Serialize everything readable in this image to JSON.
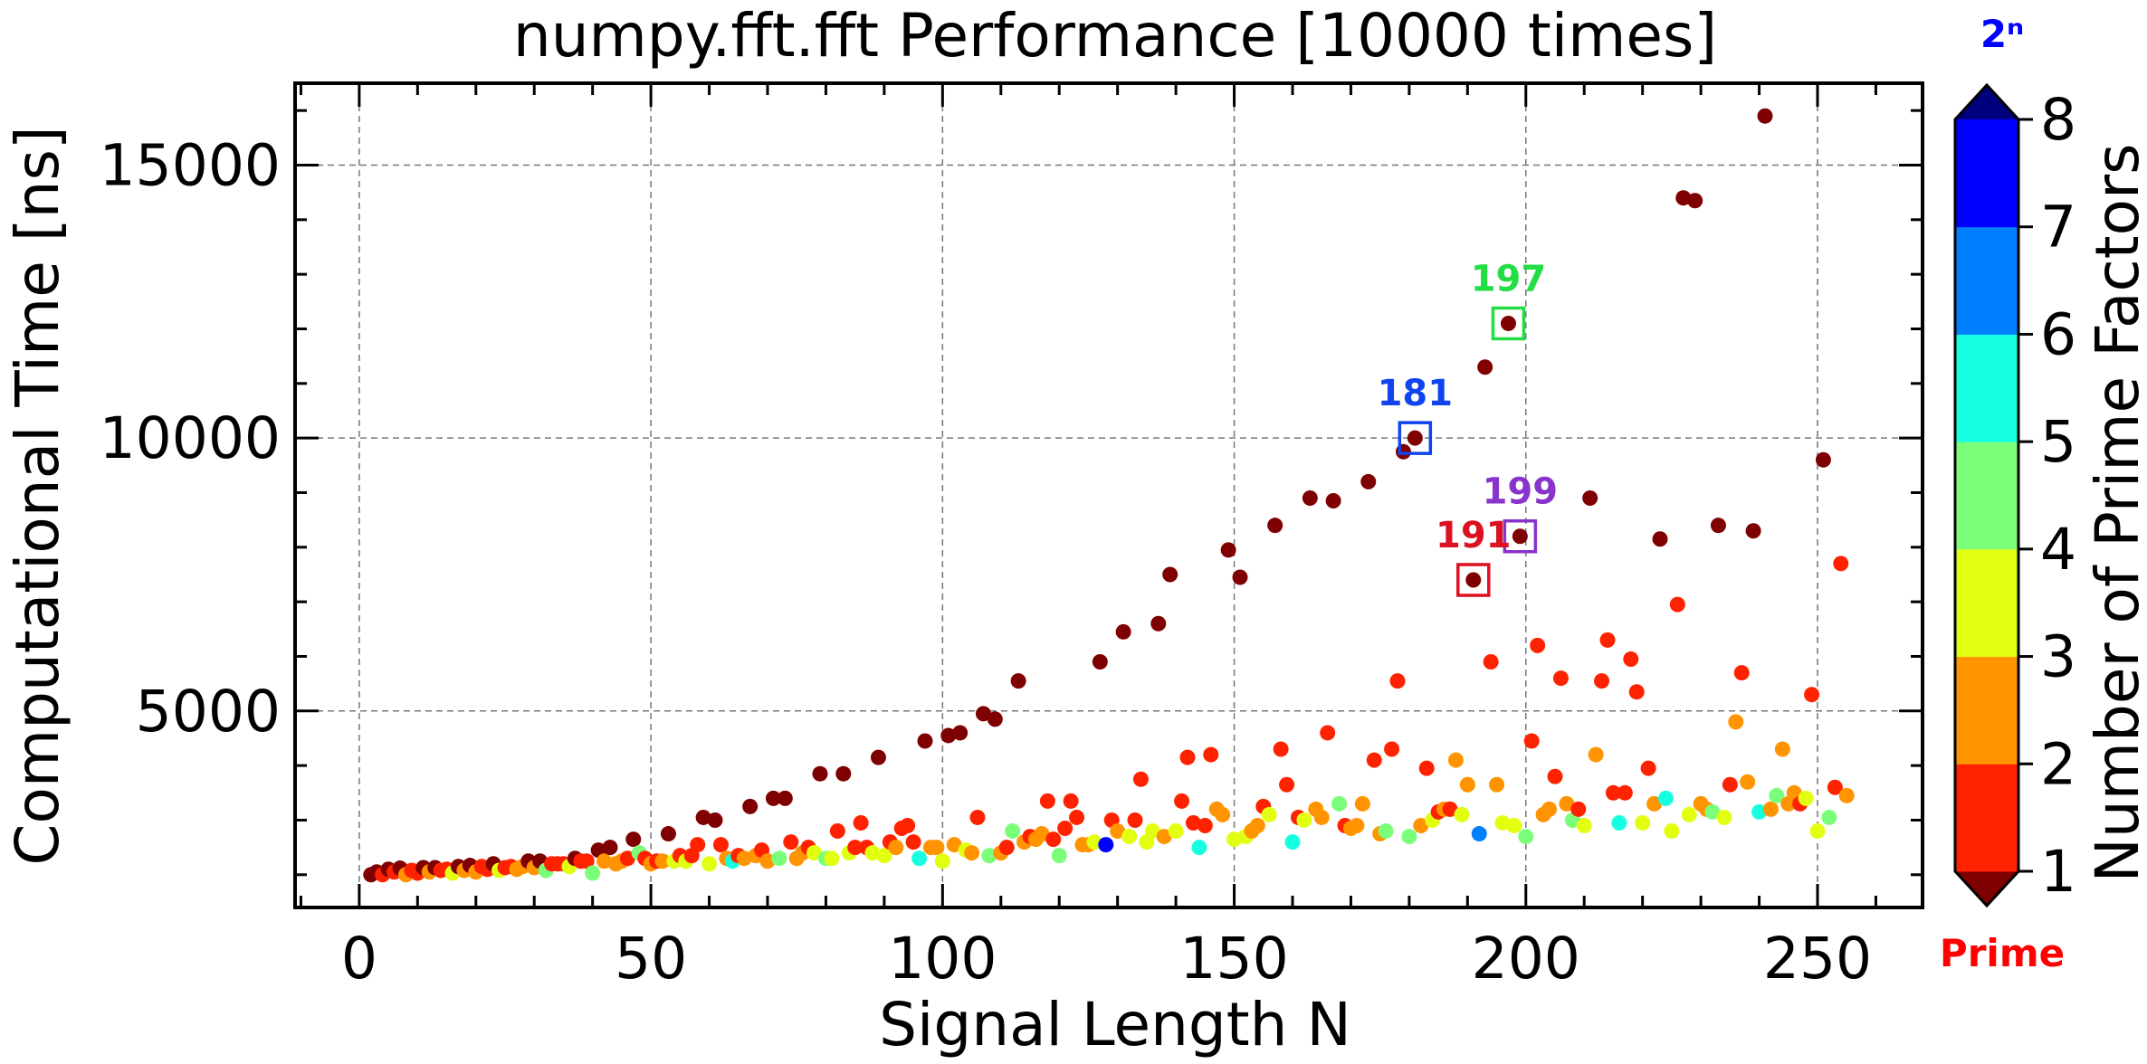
{
  "chart_data": {
    "type": "scatter",
    "title": "numpy.fft.fft Performance [10000 times]",
    "xlabel": "Signal Length N",
    "ylabel": "Computational Time [ns]",
    "xlim": [
      -11,
      268
    ],
    "ylim": [
      1400,
      16500
    ],
    "xticks": [
      0,
      50,
      100,
      150,
      200,
      250
    ],
    "yticks": [
      5000,
      10000,
      15000
    ],
    "grid": true,
    "colors": {
      "1": "#7f0000",
      "2": "#ff2200",
      "3": "#ff9400",
      "4": "#e2ff12",
      "5": "#7bff7b",
      "6": "#16ffe1",
      "7": "#0080ff",
      "8": "#0000ff"
    },
    "colorbar": {
      "label": "Number of Prime Factors",
      "ticks": [
        "1",
        "2",
        "3",
        "4",
        "5",
        "6",
        "7",
        "8"
      ],
      "top_label": "2ⁿ",
      "bottom_label": "Prime",
      "top_color": "#0000ff",
      "bottom_color": "#ff0000",
      "extend_top_color": "#00007f",
      "extend_bottom_color": "#7f0000"
    },
    "annotations": [
      {
        "text": "181",
        "x": 181,
        "y": 10000,
        "color": "#1144ee"
      },
      {
        "text": "197",
        "x": 197,
        "y": 12100,
        "color": "#22dd44"
      },
      {
        "text": "199",
        "x": 199,
        "y": 8200,
        "color": "#8833cc"
      },
      {
        "text": "191",
        "x": 191,
        "y": 7400,
        "color": "#dd1122"
      }
    ],
    "points": [
      [
        2,
        2000,
        1
      ],
      [
        3,
        2050,
        1
      ],
      [
        4,
        2000,
        2
      ],
      [
        5,
        2100,
        1
      ],
      [
        6,
        2050,
        2
      ],
      [
        7,
        2120,
        1
      ],
      [
        8,
        2000,
        3
      ],
      [
        9,
        2080,
        2
      ],
      [
        10,
        2030,
        2
      ],
      [
        11,
        2130,
        1
      ],
      [
        12,
        2050,
        3
      ],
      [
        13,
        2130,
        1
      ],
      [
        14,
        2080,
        2
      ],
      [
        15,
        2100,
        2
      ],
      [
        16,
        2030,
        4
      ],
      [
        17,
        2150,
        1
      ],
      [
        18,
        2080,
        3
      ],
      [
        19,
        2170,
        1
      ],
      [
        20,
        2050,
        3
      ],
      [
        21,
        2150,
        2
      ],
      [
        22,
        2100,
        2
      ],
      [
        23,
        2200,
        1
      ],
      [
        24,
        2080,
        4
      ],
      [
        25,
        2130,
        2
      ],
      [
        26,
        2150,
        2
      ],
      [
        27,
        2100,
        3
      ],
      [
        28,
        2150,
        3
      ],
      [
        29,
        2250,
        1
      ],
      [
        30,
        2130,
        3
      ],
      [
        31,
        2250,
        1
      ],
      [
        32,
        2080,
        5
      ],
      [
        33,
        2200,
        2
      ],
      [
        34,
        2200,
        2
      ],
      [
        35,
        2200,
        2
      ],
      [
        36,
        2150,
        4
      ],
      [
        37,
        2300,
        1
      ],
      [
        38,
        2250,
        2
      ],
      [
        39,
        2250,
        2
      ],
      [
        40,
        2030,
        5
      ],
      [
        41,
        2450,
        1
      ],
      [
        42,
        2250,
        3
      ],
      [
        43,
        2500,
        1
      ],
      [
        44,
        2200,
        3
      ],
      [
        45,
        2250,
        3
      ],
      [
        46,
        2300,
        2
      ],
      [
        47,
        2650,
        1
      ],
      [
        48,
        2400,
        5
      ],
      [
        49,
        2300,
        2
      ],
      [
        50,
        2200,
        3
      ],
      [
        51,
        2250,
        2
      ],
      [
        52,
        2250,
        3
      ],
      [
        53,
        2750,
        1
      ],
      [
        54,
        2250,
        4
      ],
      [
        55,
        2350,
        2
      ],
      [
        56,
        2250,
        4
      ],
      [
        57,
        2350,
        2
      ],
      [
        58,
        2550,
        2
      ],
      [
        59,
        3050,
        1
      ],
      [
        60,
        2200,
        4
      ],
      [
        61,
        3000,
        1
      ],
      [
        62,
        2550,
        2
      ],
      [
        63,
        2300,
        3
      ],
      [
        64,
        2250,
        6
      ],
      [
        65,
        2350,
        2
      ],
      [
        66,
        2300,
        3
      ],
      [
        67,
        3250,
        1
      ],
      [
        68,
        2350,
        3
      ],
      [
        69,
        2450,
        2
      ],
      [
        70,
        2250,
        3
      ],
      [
        71,
        3400,
        1
      ],
      [
        72,
        2300,
        5
      ],
      [
        73,
        3400,
        1
      ],
      [
        74,
        2600,
        2
      ],
      [
        75,
        2300,
        3
      ],
      [
        76,
        2400,
        3
      ],
      [
        77,
        2500,
        2
      ],
      [
        78,
        2400,
        4
      ],
      [
        79,
        3850,
        1
      ],
      [
        80,
        2300,
        5
      ],
      [
        81,
        2300,
        4
      ],
      [
        82,
        2800,
        2
      ],
      [
        83,
        3850,
        1
      ],
      [
        84,
        2400,
        4
      ],
      [
        85,
        2500,
        2
      ],
      [
        86,
        2950,
        2
      ],
      [
        87,
        2500,
        2
      ],
      [
        88,
        2400,
        4
      ],
      [
        89,
        4150,
        1
      ],
      [
        90,
        2350,
        4
      ],
      [
        91,
        2600,
        2
      ],
      [
        92,
        2500,
        3
      ],
      [
        93,
        2850,
        2
      ],
      [
        94,
        2900,
        2
      ],
      [
        95,
        2600,
        2
      ],
      [
        96,
        2300,
        6
      ],
      [
        97,
        4450,
        1
      ],
      [
        98,
        2500,
        3
      ],
      [
        99,
        2500,
        3
      ],
      [
        100,
        2250,
        4
      ],
      [
        101,
        4550,
        1
      ],
      [
        102,
        2550,
        3
      ],
      [
        103,
        4600,
        1
      ],
      [
        104,
        2450,
        4
      ],
      [
        105,
        2400,
        3
      ],
      [
        106,
        3050,
        2
      ],
      [
        107,
        4950,
        1
      ],
      [
        108,
        2350,
        5
      ],
      [
        109,
        4850,
        1
      ],
      [
        110,
        2400,
        3
      ],
      [
        111,
        2500,
        2
      ],
      [
        112,
        2800,
        5
      ],
      [
        113,
        5550,
        1
      ],
      [
        114,
        2600,
        3
      ],
      [
        115,
        2700,
        2
      ],
      [
        116,
        2650,
        3
      ],
      [
        117,
        2750,
        3
      ],
      [
        118,
        3350,
        2
      ],
      [
        119,
        2650,
        2
      ],
      [
        120,
        2350,
        5
      ],
      [
        121,
        2850,
        2
      ],
      [
        122,
        3350,
        2
      ],
      [
        123,
        3050,
        2
      ],
      [
        124,
        2550,
        3
      ],
      [
        125,
        2550,
        3
      ],
      [
        126,
        2600,
        4
      ],
      [
        127,
        5900,
        1
      ],
      [
        128,
        2550,
        8
      ],
      [
        129,
        3000,
        2
      ],
      [
        130,
        2800,
        3
      ],
      [
        131,
        6450,
        1
      ],
      [
        132,
        2700,
        4
      ],
      [
        133,
        3000,
        2
      ],
      [
        134,
        3750,
        2
      ],
      [
        135,
        2600,
        4
      ],
      [
        136,
        2800,
        4
      ],
      [
        137,
        6600,
        1
      ],
      [
        138,
        2700,
        3
      ],
      [
        139,
        7500,
        1
      ],
      [
        140,
        2800,
        4
      ],
      [
        141,
        3350,
        2
      ],
      [
        142,
        4150,
        2
      ],
      [
        143,
        2950,
        2
      ],
      [
        144,
        2500,
        6
      ],
      [
        145,
        2900,
        2
      ],
      [
        146,
        4200,
        2
      ],
      [
        147,
        3200,
        3
      ],
      [
        148,
        3100,
        3
      ],
      [
        149,
        7950,
        1
      ],
      [
        150,
        2650,
        4
      ],
      [
        151,
        7450,
        1
      ],
      [
        152,
        2700,
        4
      ],
      [
        153,
        2800,
        3
      ],
      [
        154,
        2900,
        3
      ],
      [
        155,
        3250,
        2
      ],
      [
        156,
        3100,
        4
      ],
      [
        157,
        8400,
        1
      ],
      [
        158,
        4300,
        2
      ],
      [
        159,
        3650,
        2
      ],
      [
        160,
        2600,
        6
      ],
      [
        161,
        3050,
        2
      ],
      [
        162,
        3000,
        4
      ],
      [
        163,
        8900,
        1
      ],
      [
        164,
        3200,
        3
      ],
      [
        165,
        3050,
        3
      ],
      [
        166,
        4600,
        2
      ],
      [
        167,
        8850,
        1
      ],
      [
        168,
        3300,
        5
      ],
      [
        169,
        2900,
        2
      ],
      [
        170,
        2850,
        3
      ],
      [
        171,
        2900,
        3
      ],
      [
        172,
        3300,
        3
      ],
      [
        173,
        9200,
        1
      ],
      [
        174,
        4100,
        2
      ],
      [
        175,
        2750,
        3
      ],
      [
        176,
        2800,
        5
      ],
      [
        177,
        4300,
        2
      ],
      [
        178,
        5550,
        2
      ],
      [
        179,
        9750,
        1
      ],
      [
        180,
        2700,
        5
      ],
      [
        181,
        10000,
        1
      ],
      [
        182,
        2900,
        3
      ],
      [
        183,
        3950,
        2
      ],
      [
        184,
        3000,
        4
      ],
      [
        185,
        3150,
        2
      ],
      [
        186,
        3200,
        3
      ],
      [
        187,
        3200,
        2
      ],
      [
        188,
        4100,
        3
      ],
      [
        189,
        3100,
        4
      ],
      [
        190,
        3650,
        3
      ],
      [
        191,
        7400,
        1
      ],
      [
        192,
        2750,
        7
      ],
      [
        193,
        11300,
        1
      ],
      [
        194,
        5900,
        2
      ],
      [
        195,
        3650,
        3
      ],
      [
        196,
        2950,
        4
      ],
      [
        197,
        12100,
        1
      ],
      [
        198,
        2900,
        4
      ],
      [
        199,
        8200,
        1
      ],
      [
        200,
        2700,
        5
      ],
      [
        201,
        4450,
        2
      ],
      [
        202,
        6200,
        2
      ],
      [
        203,
        3100,
        3
      ],
      [
        204,
        3200,
        3
      ],
      [
        205,
        3800,
        2
      ],
      [
        206,
        5600,
        2
      ],
      [
        207,
        3300,
        3
      ],
      [
        208,
        3000,
        5
      ],
      [
        209,
        3200,
        2
      ],
      [
        210,
        2900,
        4
      ],
      [
        211,
        8900,
        1
      ],
      [
        212,
        4200,
        3
      ],
      [
        213,
        5550,
        2
      ],
      [
        214,
        6300,
        2
      ],
      [
        215,
        3500,
        2
      ],
      [
        216,
        2950,
        6
      ],
      [
        217,
        3500,
        2
      ],
      [
        218,
        5950,
        2
      ],
      [
        219,
        5350,
        2
      ],
      [
        220,
        2950,
        4
      ],
      [
        221,
        3950,
        2
      ],
      [
        222,
        3300,
        3
      ],
      [
        223,
        8150,
        1
      ],
      [
        224,
        3400,
        6
      ],
      [
        225,
        2800,
        4
      ],
      [
        226,
        6950,
        2
      ],
      [
        227,
        14400,
        1
      ],
      [
        228,
        3100,
        4
      ],
      [
        229,
        14350,
        1
      ],
      [
        230,
        3300,
        3
      ],
      [
        231,
        3200,
        3
      ],
      [
        232,
        3150,
        5
      ],
      [
        233,
        8400,
        1
      ],
      [
        234,
        3050,
        4
      ],
      [
        235,
        3650,
        2
      ],
      [
        236,
        4800,
        3
      ],
      [
        237,
        5700,
        2
      ],
      [
        238,
        3700,
        3
      ],
      [
        239,
        8300,
        1
      ],
      [
        240,
        3150,
        6
      ],
      [
        241,
        15900,
        1
      ],
      [
        242,
        3200,
        3
      ],
      [
        243,
        3450,
        5
      ],
      [
        244,
        4300,
        3
      ],
      [
        245,
        3300,
        3
      ],
      [
        246,
        3500,
        3
      ],
      [
        247,
        3300,
        2
      ],
      [
        248,
        3400,
        4
      ],
      [
        249,
        5300,
        2
      ],
      [
        250,
        2800,
        4
      ],
      [
        251,
        9600,
        1
      ],
      [
        252,
        3050,
        5
      ],
      [
        253,
        3600,
        2
      ],
      [
        254,
        7700,
        2
      ],
      [
        255,
        3450,
        3
      ]
    ]
  }
}
